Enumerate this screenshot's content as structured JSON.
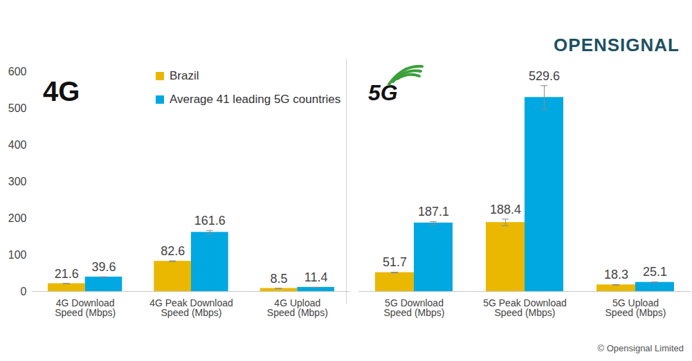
{
  "logo": "OPENSIGNAL",
  "copyright": "© Opensignal Limited",
  "chart_data": [
    {
      "type": "bar",
      "title": "4G",
      "categories": [
        "4G Download Speed (Mbps)",
        "4G Peak Download Speed (Mbps)",
        "4G Upload Speed (Mbps)"
      ],
      "series": [
        {
          "name": "Brazil",
          "color": "#eab800",
          "values": [
            21.6,
            82.6,
            8.5
          ],
          "errors": [
            0.4,
            1.2,
            0.2
          ]
        },
        {
          "name": "Average 41 leading 5G countries",
          "color": "#00a8e1",
          "values": [
            39.6,
            161.6,
            11.4
          ],
          "errors": [
            0.6,
            5,
            0.3
          ]
        }
      ],
      "ylim": [
        0,
        600
      ],
      "yticks": [
        0,
        100,
        200,
        300,
        400,
        500,
        600
      ],
      "grid": false,
      "legend": "top",
      "data_labels": true
    },
    {
      "type": "bar",
      "title": "5G",
      "categories": [
        "5G Download Speed (Mbps)",
        "5G Peak Download Speed (Mbps)",
        "5G Upload Speed (Mbps)"
      ],
      "series": [
        {
          "name": "Brazil",
          "color": "#eab800",
          "values": [
            51.7,
            188.4,
            18.3
          ],
          "errors": [
            1,
            9,
            0.8
          ]
        },
        {
          "name": "Average 41 leading 5G countries",
          "color": "#00a8e1",
          "values": [
            187.1,
            529.6,
            25.1
          ],
          "errors": [
            3.5,
            32,
            1
          ]
        }
      ],
      "ylim": [
        0,
        600
      ],
      "yticks": [
        0,
        100,
        200,
        300,
        400,
        500,
        600
      ],
      "grid": false,
      "data_labels": true,
      "tick_labels": "x"
    }
  ]
}
